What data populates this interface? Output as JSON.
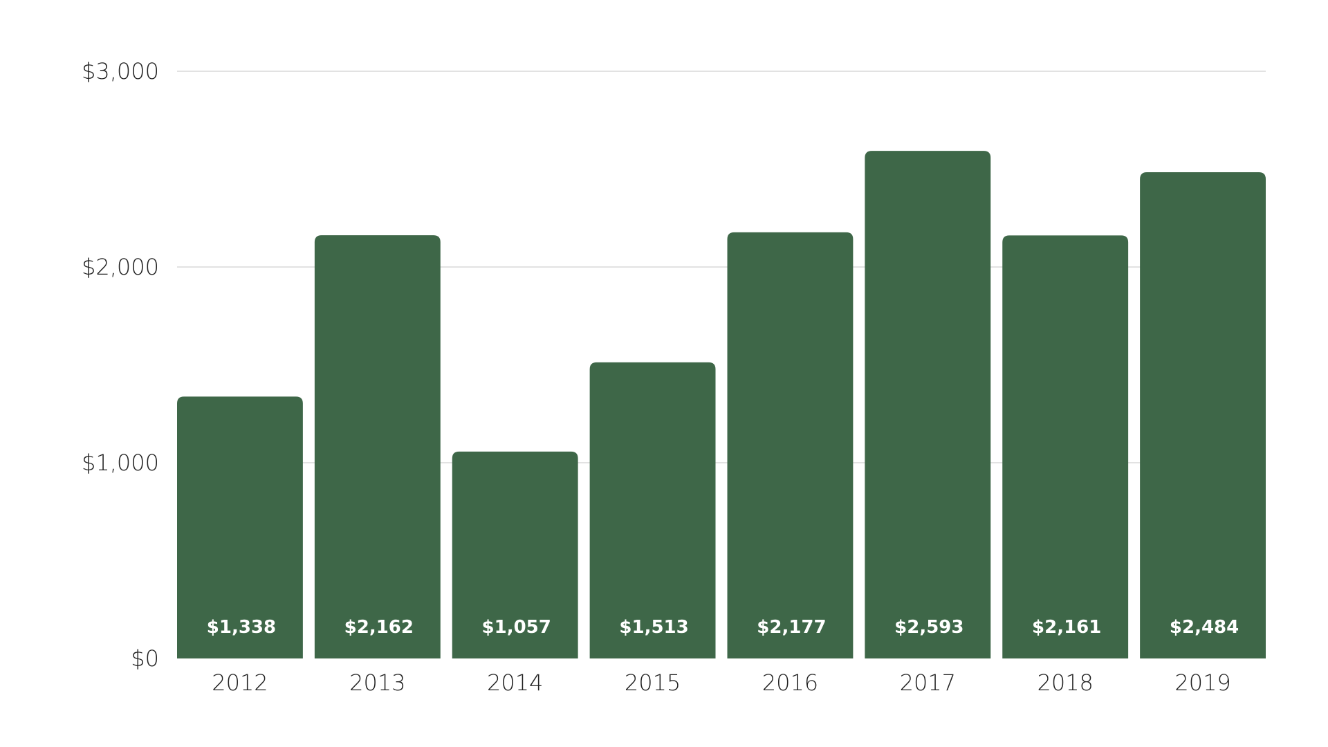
{
  "chart_data": {
    "type": "bar",
    "categories": [
      "2012",
      "2013",
      "2014",
      "2015",
      "2016",
      "2017",
      "2018",
      "2019"
    ],
    "values": [
      1338,
      2162,
      1057,
      1513,
      2177,
      2593,
      2161,
      2484
    ],
    "data_labels": [
      "$1,338",
      "$2,162",
      "$1,057",
      "$1,513",
      "$2,177",
      "$2,593",
      "$2,161",
      "$2,484"
    ],
    "title": "",
    "xlabel": "",
    "ylabel": "",
    "ylim": [
      0,
      3000
    ],
    "yticks": [
      0,
      1000,
      2000,
      3000
    ],
    "ytick_labels": [
      "$0",
      "$1,000",
      "$2,000",
      "$3,000"
    ],
    "grid": true,
    "legend": "none",
    "bar_color": "#3e6748",
    "label_color": "#ffffff",
    "grid_color": "#d9d9d9"
  }
}
